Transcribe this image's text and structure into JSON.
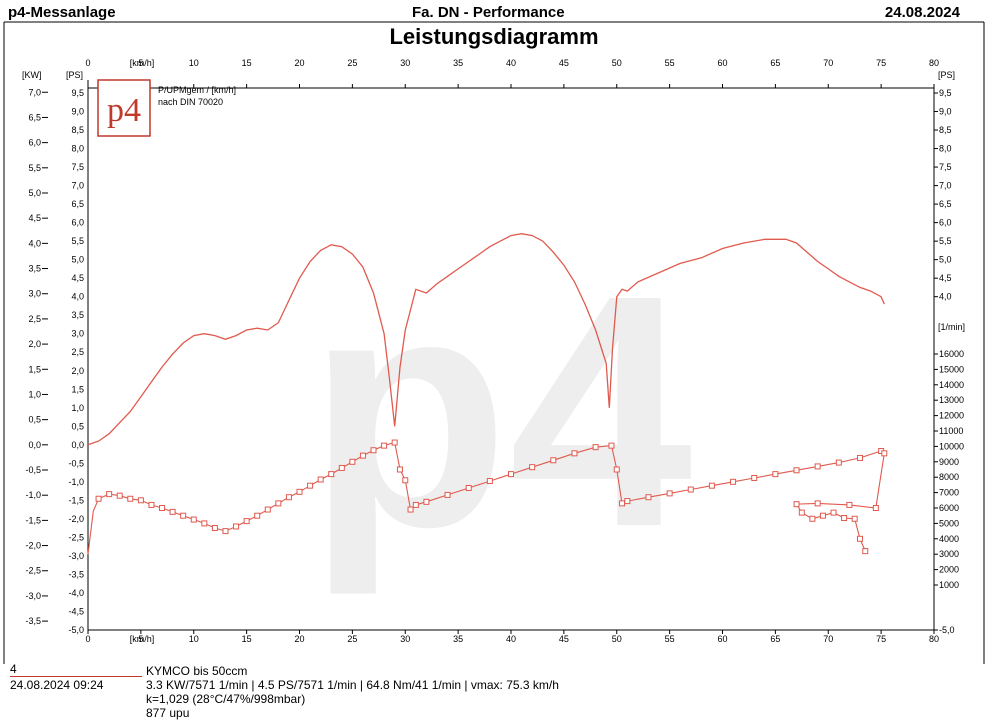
{
  "header": {
    "app_title": "p4-Messanlage",
    "firm_title": "Fa. DN - Performance",
    "date": "24.08.2024",
    "chart_title": "Leistungsdiagramm"
  },
  "legend": {
    "logo_text": "p4",
    "line1": "P/UPMgem / [km/h]",
    "line2": "nach DIN 70020"
  },
  "watermark": "p4",
  "footer": {
    "run_number": "4",
    "run_datetime": "24.08.2024  09:24",
    "vehicle": "KYMCO bis      50ccm",
    "results": "3.3 KW/7571 1/min  |  4.5 PS/7571 1/min  |  64.8 Nm/41 1/min |  vmax: 75.3 km/h",
    "correction": "k=1,029 (28°C/47%/998mbar)",
    "upu": "877 upu"
  },
  "chart_data": {
    "type": "line",
    "title": "Leistungsdiagramm",
    "x_axis": {
      "label": "[km/h]",
      "range": [
        0,
        80
      ],
      "ticks": [
        0,
        5,
        10,
        15,
        20,
        25,
        30,
        35,
        40,
        45,
        50,
        55,
        60,
        65,
        70,
        75,
        80
      ]
    },
    "y_axes": {
      "kw": {
        "label": "[KW]",
        "range": [
          -5.0,
          7.0
        ]
      },
      "ps_left": {
        "label": "[PS]",
        "range": [
          -5.0,
          9.5
        ]
      },
      "ps_right": {
        "label": "[PS]",
        "range": [
          -5.0,
          9.5
        ]
      },
      "rpm": {
        "label": "[1/min]",
        "range": [
          0,
          16000
        ]
      }
    },
    "kw_ticks": [
      "7,0",
      "6,5",
      "6,0",
      "5,5",
      "5,0",
      "4,5",
      "4,0",
      "3,5",
      "3,0",
      "2,5",
      "2,0",
      "1,5",
      "1,0",
      "0,5",
      "0,0",
      "-0,5",
      "-1,0",
      "-1,5",
      "-2,0",
      "-2,5",
      "-3,0",
      "-3,5"
    ],
    "ps_left_ticks": [
      "9,5",
      "9,0",
      "8,5",
      "8,0",
      "7,5",
      "7,0",
      "6,5",
      "6,0",
      "5,5",
      "5,0",
      "4,5",
      "4,0",
      "3,5",
      "3,0",
      "2,5",
      "2,0",
      "1,5",
      "1,0",
      "0,5",
      "0,0",
      "-0,5",
      "-1,0",
      "-1,5",
      "-2,0",
      "-2,5",
      "-3,0",
      "-3,5",
      "-4,0",
      "-4,5",
      "-5,0"
    ],
    "ps_right_ticks": [
      "9,5",
      "9,0",
      "8,5",
      "8,0",
      "7,5",
      "7,0",
      "6,5",
      "6,0",
      "5,5",
      "5,0",
      "4,5",
      "4,0",
      "-5,0"
    ],
    "rpm_ticks": [
      "16000",
      "15000",
      "14000",
      "13000",
      "12000",
      "11000",
      "10000",
      "9000",
      "8000",
      "7000",
      "6000",
      "5000",
      "4000",
      "3000",
      "2000",
      "1000"
    ],
    "series": [
      {
        "name": "P/UPMgem",
        "unit": "PS",
        "color": "#e05a4e",
        "x": [
          0,
          1,
          2,
          3,
          4,
          5,
          6,
          7,
          8,
          9,
          10,
          11,
          12,
          13,
          14,
          15,
          16,
          17,
          18,
          19,
          20,
          21,
          22,
          23,
          24,
          25,
          26,
          27,
          28,
          28.5,
          29,
          29.5,
          30,
          31,
          32,
          33,
          34,
          35,
          36,
          37,
          38,
          39,
          40,
          41,
          42,
          43,
          44,
          45,
          46,
          47,
          48,
          49,
          49.3,
          49.6,
          50,
          50.5,
          51,
          52,
          54,
          56,
          58,
          60,
          62,
          64,
          66,
          67,
          68,
          69,
          70,
          71,
          72,
          73,
          74,
          75,
          75.3
        ],
        "y": [
          0.0,
          0.1,
          0.3,
          0.6,
          0.9,
          1.3,
          1.7,
          2.1,
          2.45,
          2.75,
          2.95,
          3.0,
          2.95,
          2.85,
          2.95,
          3.1,
          3.15,
          3.1,
          3.3,
          3.9,
          4.5,
          4.95,
          5.25,
          5.4,
          5.35,
          5.15,
          4.8,
          4.1,
          3.0,
          1.8,
          0.5,
          2.1,
          3.1,
          4.2,
          4.1,
          4.35,
          4.55,
          4.75,
          4.95,
          5.15,
          5.35,
          5.5,
          5.65,
          5.7,
          5.65,
          5.5,
          5.2,
          4.85,
          4.4,
          3.8,
          3.1,
          2.2,
          1.0,
          2.6,
          4.0,
          4.2,
          4.15,
          4.4,
          4.65,
          4.9,
          5.05,
          5.3,
          5.45,
          5.55,
          5.55,
          5.45,
          5.2,
          4.95,
          4.75,
          4.55,
          4.4,
          4.25,
          4.15,
          4.0,
          3.8
        ]
      },
      {
        "name": "1/min",
        "unit": "1/min",
        "color": "#e05a4e",
        "x": [
          0,
          0.5,
          1,
          2,
          3,
          4,
          5,
          6,
          7,
          8,
          9,
          10,
          11,
          12,
          13,
          14,
          15,
          16,
          17,
          18,
          19,
          20,
          21,
          22,
          23,
          24,
          25,
          26,
          27,
          28,
          29,
          29.5,
          30,
          30.5,
          31,
          32,
          34,
          36,
          38,
          40,
          42,
          44,
          46,
          48,
          49.5,
          50,
          50.5,
          51,
          53,
          55,
          57,
          59,
          61,
          63,
          65,
          67,
          69,
          71,
          73,
          75,
          75.3,
          74.5,
          72,
          69,
          67,
          67.5,
          68.5,
          69.5,
          70.5,
          71.5,
          72.5,
          73,
          73.5
        ],
        "y": [
          3000,
          5800,
          6600,
          6900,
          6800,
          6600,
          6500,
          6200,
          6000,
          5750,
          5500,
          5250,
          5000,
          4700,
          4500,
          4800,
          5150,
          5500,
          5900,
          6300,
          6700,
          7050,
          7450,
          7850,
          8200,
          8600,
          9000,
          9400,
          9750,
          10050,
          10250,
          8500,
          7800,
          5900,
          6200,
          6400,
          6850,
          7300,
          7750,
          8200,
          8650,
          9100,
          9550,
          9950,
          10050,
          8500,
          6300,
          6450,
          6700,
          6950,
          7200,
          7450,
          7700,
          7950,
          8200,
          8450,
          8700,
          8950,
          9250,
          9700,
          9550,
          6000,
          6200,
          6300,
          6250,
          5700,
          5300,
          5500,
          5700,
          5350,
          5300,
          4000,
          3200
        ]
      }
    ]
  }
}
